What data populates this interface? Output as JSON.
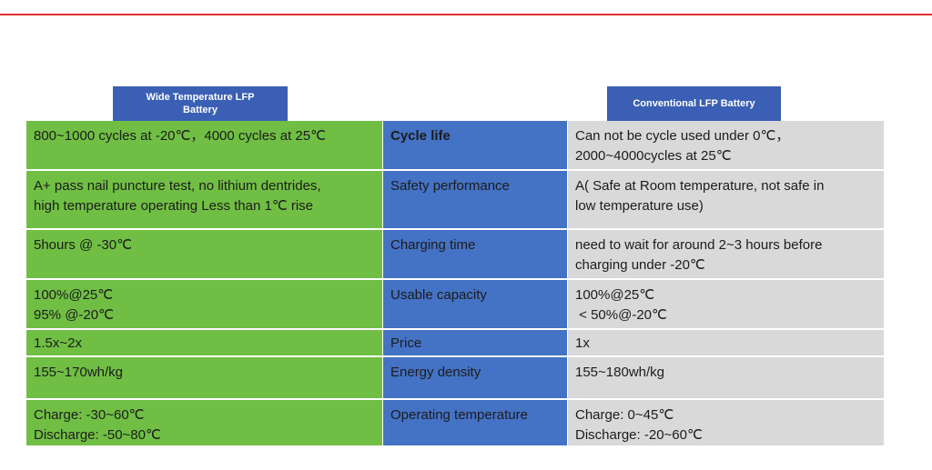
{
  "header": {
    "left": [
      "Wide Temperature LFP",
      "Battery"
    ],
    "right": [
      "Conventional LFP Battery"
    ]
  },
  "table": {
    "rows": [
      {
        "wide": [
          "800~1000 cycles at -20℃，4000 cycles at 25℃"
        ],
        "feature": "Cycle life",
        "conventional": [
          "Can not be cycle used under 0℃，",
          "2000~4000cycles at 25℃"
        ]
      },
      {
        "wide": [
          "A+ pass nail puncture test, no lithium dentrides,",
          "high temperature operating Less than 1℃ rise"
        ],
        "feature": "Safety performance",
        "conventional": [
          "A( Safe at Room temperature, not safe in",
          "low temperature use)"
        ]
      },
      {
        "wide": [
          "5hours @ -30℃"
        ],
        "feature": "Charging time",
        "conventional": [
          "need to wait for around 2~3 hours before",
          "charging under -20℃"
        ]
      },
      {
        "wide": [
          "100%@25℃",
          "95% @-20℃"
        ],
        "feature": "Usable capacity",
        "conventional": [
          "100%@25℃",
          " < 50%@-20℃"
        ]
      },
      {
        "wide": [
          "1.5x~2x"
        ],
        "feature": "Price",
        "conventional": [
          "1x"
        ]
      },
      {
        "wide": [
          "155~170wh/kg"
        ],
        "feature": "Energy density",
        "conventional": [
          "155~180wh/kg"
        ]
      },
      {
        "wide": [
          "Charge: -30~60℃",
          "Discharge: -50~80℃"
        ],
        "feature": "Operating temperature",
        "conventional": [
          "Charge: 0~45℃",
          "Discharge: -20~60℃"
        ]
      }
    ]
  }
}
